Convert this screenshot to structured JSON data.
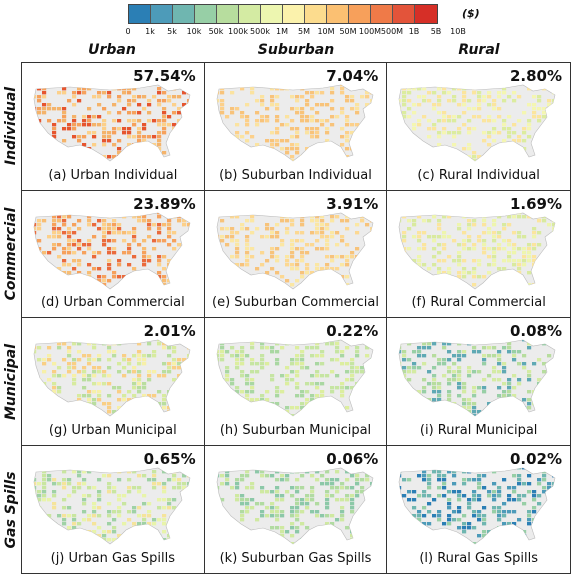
{
  "colorbar": {
    "unit": "($)",
    "colors": [
      "#2b7fb5",
      "#4d9bb9",
      "#6fb6b0",
      "#97cfa6",
      "#b7dd9e",
      "#d4eba3",
      "#edf6b0",
      "#fbf2ac",
      "#fcdc8e",
      "#fbc072",
      "#f7a05b",
      "#ef7a48",
      "#e3543a",
      "#d62f27"
    ],
    "ticks": [
      "0",
      "1k",
      "5k",
      "10k",
      "50k",
      "100k",
      "500k",
      "1M",
      "5M",
      "10M",
      "50M",
      "100M",
      "500M",
      "1B",
      "5B",
      "10B"
    ]
  },
  "columns": [
    "Urban",
    "Suburban",
    "Rural"
  ],
  "rows": [
    "Individual",
    "Commercial",
    "Municipal",
    "Gas Spills"
  ],
  "panels": [
    {
      "percent": "57.54%",
      "caption": "(a) Urban Individual",
      "palette": [
        "#f6a15c",
        "#f4b36a",
        "#fcd08a",
        "#e6552e"
      ]
    },
    {
      "percent": "7.04%",
      "caption": "(b) Suburban Individual",
      "palette": [
        "#fcd08a",
        "#fbe3a0",
        "#f8c37a"
      ]
    },
    {
      "percent": "2.80%",
      "caption": "(c) Rural Individual",
      "palette": [
        "#f4f6b2",
        "#fbe59e",
        "#dcec9f"
      ]
    },
    {
      "percent": "23.89%",
      "caption": "(d) Urban Commercial",
      "palette": [
        "#f6a15c",
        "#f8bd73",
        "#fcd08a",
        "#ea6a3c"
      ]
    },
    {
      "percent": "3.91%",
      "caption": "(e) Suburban Commercial",
      "palette": [
        "#fcd892",
        "#fbe7a3",
        "#f7c37b"
      ]
    },
    {
      "percent": "1.69%",
      "caption": "(f) Rural Commercial",
      "palette": [
        "#eef5ae",
        "#d9ea9f",
        "#fbe59e"
      ]
    },
    {
      "percent": "2.01%",
      "caption": "(g) Urban Municipal",
      "palette": [
        "#d7eb9f",
        "#f7f0a8",
        "#f9cf85",
        "#b9de9f"
      ]
    },
    {
      "percent": "0.22%",
      "caption": "(h) Suburban Municipal",
      "palette": [
        "#c6e5a2",
        "#dcee9f",
        "#a9d7a2"
      ]
    },
    {
      "percent": "0.08%",
      "caption": "(i) Rural Municipal",
      "palette": [
        "#98cfa6",
        "#b7dd9e",
        "#5fa9b4",
        "#d4eba3"
      ]
    },
    {
      "percent": "0.65%",
      "caption": "(j) Urban Gas Spills",
      "palette": [
        "#c9e6a0",
        "#e8f4aa",
        "#f5e49b",
        "#9fd2a5"
      ]
    },
    {
      "percent": "0.06%",
      "caption": "(k) Suburban Gas Spills",
      "palette": [
        "#b1dba1",
        "#cfe9a1",
        "#8cc8a8"
      ]
    },
    {
      "percent": "0.02%",
      "caption": "(l) Rural Gas Spills",
      "palette": [
        "#4d9bb9",
        "#6fb6b0",
        "#97cfa6",
        "#2b7fb5"
      ]
    }
  ]
}
